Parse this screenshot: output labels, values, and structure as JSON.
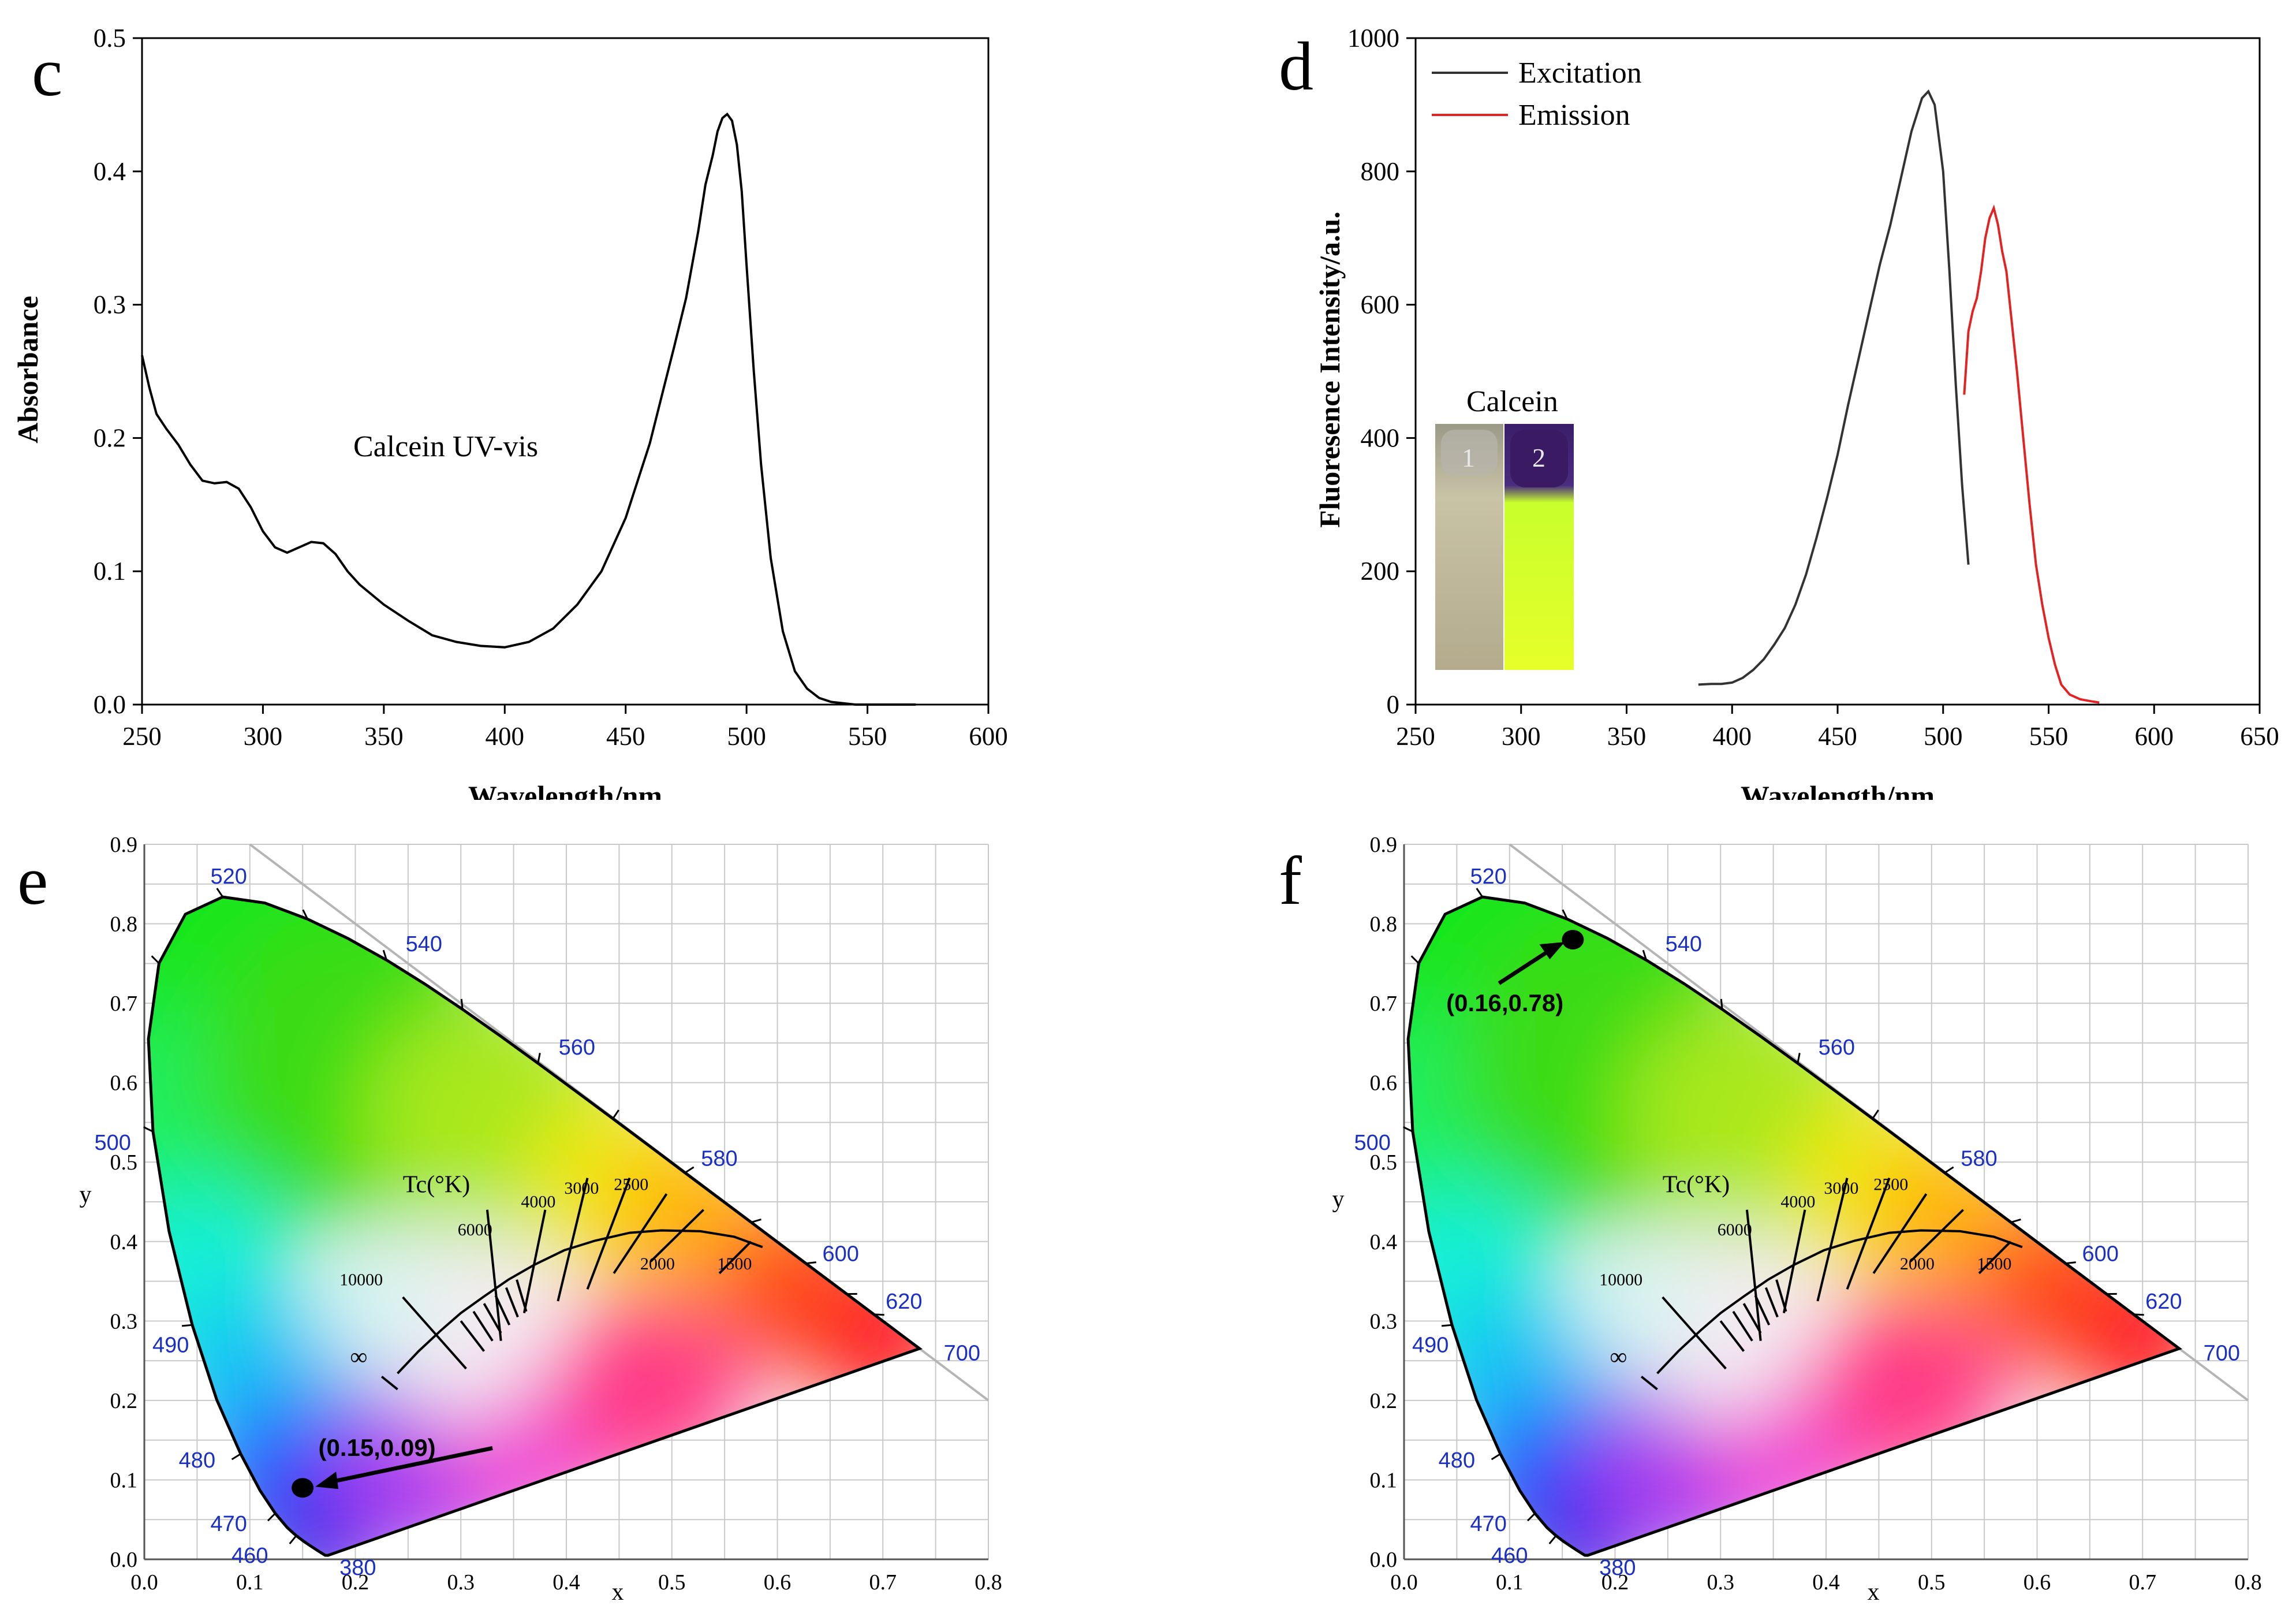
{
  "panels": {
    "c": "c",
    "d": "d",
    "e": "e",
    "f": "f"
  },
  "chart_data": [
    {
      "id": "c",
      "type": "line",
      "title": "",
      "xlabel": "Wavelength/nm",
      "ylabel": "Absorbance",
      "xlim": [
        250,
        600
      ],
      "ylim": [
        0.0,
        0.5
      ],
      "xticks": [
        "250",
        "300",
        "350",
        "400",
        "450",
        "500",
        "550",
        "600"
      ],
      "yticks": [
        "0.0",
        "0.1",
        "0.2",
        "0.3",
        "0.4",
        "0.5"
      ],
      "annotation": "Calcein UV-vis",
      "series": [
        {
          "name": "Calcein",
          "color": "#000000",
          "x": [
            250,
            253,
            256,
            260,
            265,
            270,
            275,
            280,
            285,
            290,
            295,
            300,
            305,
            310,
            315,
            320,
            325,
            330,
            335,
            340,
            350,
            360,
            370,
            380,
            390,
            400,
            410,
            420,
            430,
            440,
            450,
            460,
            465,
            470,
            475,
            480,
            483,
            486,
            488,
            490,
            492,
            494,
            496,
            498,
            500,
            503,
            506,
            510,
            515,
            520,
            525,
            530,
            535,
            540,
            545,
            550,
            560,
            570
          ],
          "y": [
            0.262,
            0.238,
            0.218,
            0.207,
            0.195,
            0.18,
            0.168,
            0.166,
            0.167,
            0.162,
            0.148,
            0.13,
            0.118,
            0.114,
            0.118,
            0.122,
            0.121,
            0.113,
            0.1,
            0.09,
            0.075,
            0.063,
            0.052,
            0.047,
            0.044,
            0.043,
            0.047,
            0.057,
            0.075,
            0.1,
            0.14,
            0.196,
            0.232,
            0.268,
            0.305,
            0.355,
            0.39,
            0.412,
            0.43,
            0.44,
            0.443,
            0.438,
            0.42,
            0.385,
            0.33,
            0.25,
            0.18,
            0.11,
            0.055,
            0.025,
            0.012,
            0.005,
            0.002,
            0.001,
            0.0,
            0.0,
            0.0,
            0.0
          ]
        }
      ]
    },
    {
      "id": "d",
      "type": "line",
      "title": "",
      "xlabel": "Wavelength/nm",
      "ylabel": "Fluoresence Intensity/a.u.",
      "xlim": [
        250,
        650
      ],
      "ylim": [
        0,
        1000
      ],
      "xticks": [
        "250",
        "300",
        "350",
        "400",
        "450",
        "500",
        "550",
        "600",
        "650"
      ],
      "yticks": [
        "0",
        "200",
        "400",
        "600",
        "800",
        "1000"
      ],
      "legend": [
        "Excitation",
        "Emission"
      ],
      "inset": {
        "title": "Calcein",
        "labels": [
          "1",
          "2"
        ]
      },
      "series": [
        {
          "name": "Excitation",
          "color": "#333333",
          "x": [
            384,
            390,
            395,
            400,
            405,
            410,
            415,
            420,
            425,
            430,
            435,
            440,
            445,
            450,
            455,
            460,
            465,
            470,
            475,
            480,
            485,
            490,
            493,
            496,
            500,
            503,
            506,
            509,
            512
          ],
          "y": [
            30,
            31,
            31,
            33,
            40,
            52,
            68,
            90,
            115,
            150,
            195,
            250,
            310,
            375,
            450,
            520,
            590,
            660,
            720,
            790,
            860,
            910,
            920,
            900,
            800,
            650,
            480,
            330,
            210
          ]
        },
        {
          "name": "Emission",
          "color": "#e32222",
          "x": [
            510,
            512,
            514,
            516,
            518,
            520,
            522,
            524,
            526,
            528,
            530,
            532,
            535,
            538,
            541,
            544,
            547,
            550,
            553,
            556,
            560,
            565,
            570,
            574
          ],
          "y": [
            465,
            560,
            590,
            610,
            650,
            700,
            730,
            745,
            720,
            680,
            650,
            590,
            500,
            400,
            300,
            210,
            150,
            100,
            60,
            30,
            15,
            8,
            5,
            3
          ]
        }
      ]
    },
    {
      "id": "e",
      "type": "scatter",
      "xlabel": "x",
      "ylabel": "y",
      "xlim": [
        0.0,
        0.8
      ],
      "ylim": [
        0.0,
        0.9
      ],
      "xticks": [
        "0.0",
        "0.1",
        "0.2",
        "0.3",
        "0.4",
        "0.5",
        "0.6",
        "0.7",
        "0.8"
      ],
      "yticks": [
        "0.0",
        "0.1",
        "0.2",
        "0.3",
        "0.4",
        "0.5",
        "0.6",
        "0.7",
        "0.8",
        "0.9"
      ],
      "wavelength_labels": [
        "380",
        "460",
        "470",
        "480",
        "490",
        "500",
        "520",
        "540",
        "560",
        "580",
        "600",
        "620",
        "700"
      ],
      "cct_title": "Tc(°K)",
      "cct_labels": [
        "10000",
        "6000",
        "4000",
        "3000",
        "2500",
        "2000",
        "1500",
        "∞"
      ],
      "point": {
        "x": 0.15,
        "y": 0.09,
        "label": "(0.15,0.09)"
      }
    },
    {
      "id": "f",
      "type": "scatter",
      "xlabel": "x",
      "ylabel": "y",
      "xlim": [
        0.0,
        0.8
      ],
      "ylim": [
        0.0,
        0.9
      ],
      "xticks": [
        "0.0",
        "0.1",
        "0.2",
        "0.3",
        "0.4",
        "0.5",
        "0.6",
        "0.7",
        "0.8"
      ],
      "yticks": [
        "0.0",
        "0.1",
        "0.2",
        "0.3",
        "0.4",
        "0.5",
        "0.6",
        "0.7",
        "0.8",
        "0.9"
      ],
      "wavelength_labels": [
        "380",
        "460",
        "470",
        "480",
        "490",
        "500",
        "520",
        "540",
        "560",
        "580",
        "600",
        "620",
        "700"
      ],
      "cct_title": "Tc(°K)",
      "cct_labels": [
        "10000",
        "6000",
        "4000",
        "3000",
        "2500",
        "2000",
        "1500",
        "∞"
      ],
      "point": {
        "x": 0.16,
        "y": 0.78,
        "label": "(0.16,0.78)"
      }
    }
  ]
}
